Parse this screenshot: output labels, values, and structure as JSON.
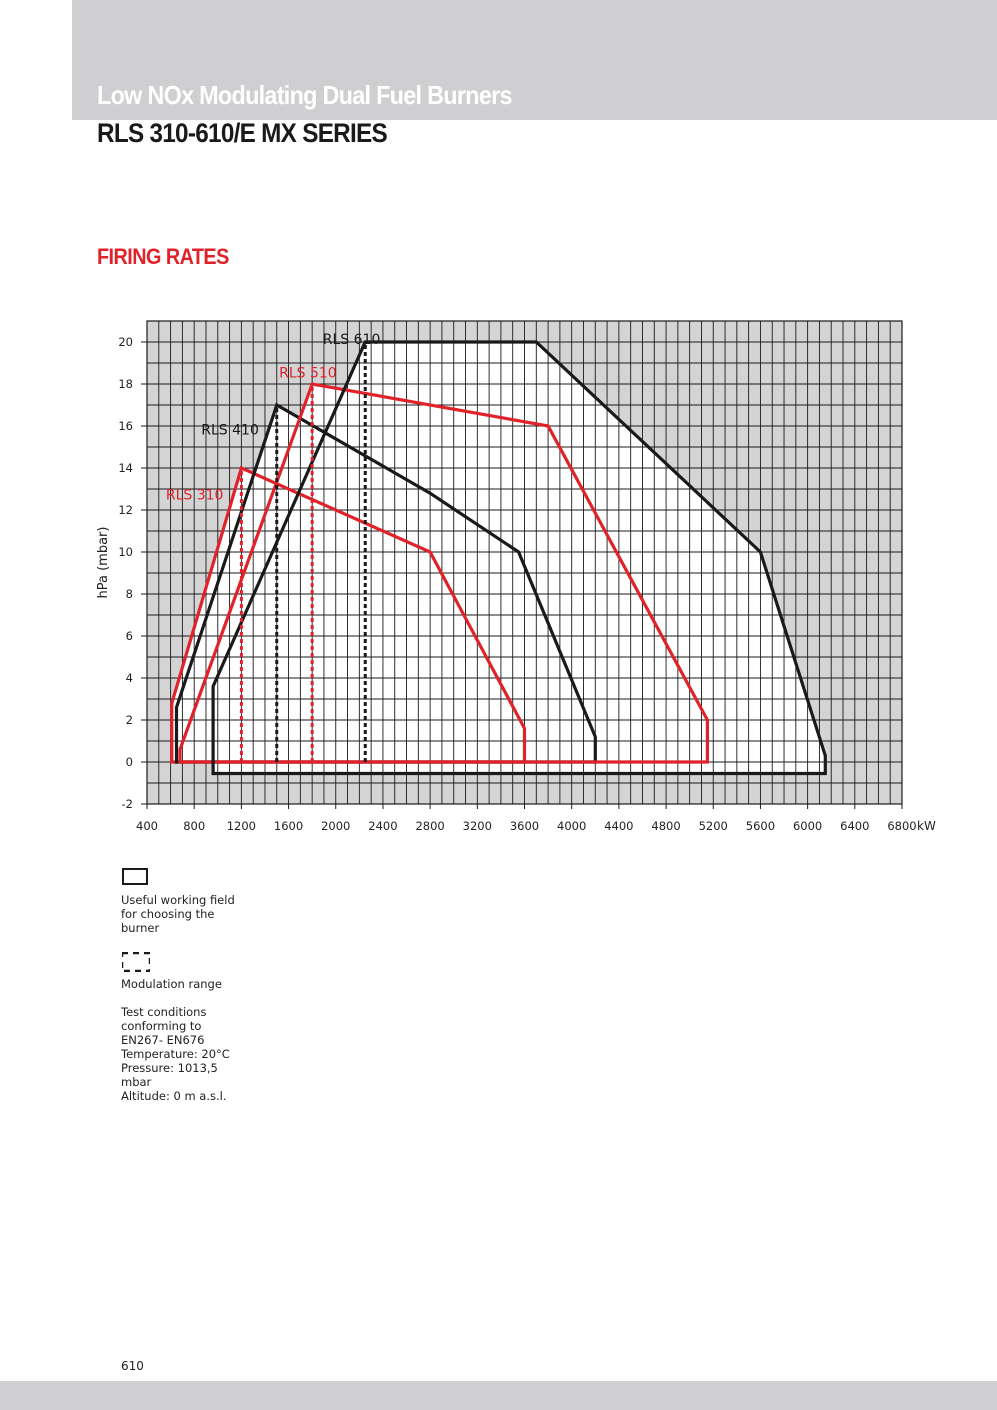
{
  "header": {
    "series_label": "Low NOx Modulating Dual Fuel Burners",
    "title": "RLS 310-610/E MX SERIES"
  },
  "section_title": "FIRING RATES",
  "chart_data": {
    "type": "line",
    "title": "",
    "xlabel": "",
    "x_unit": "kW",
    "ylabel": "hPa (mbar)",
    "xlim": [
      400,
      6800
    ],
    "ylim": [
      -2,
      21
    ],
    "x_ticks": [
      400,
      800,
      1200,
      1600,
      2000,
      2400,
      2800,
      3200,
      3600,
      4000,
      4400,
      4800,
      5200,
      5600,
      6000,
      6400,
      6800
    ],
    "y_ticks": [
      -2,
      0,
      2,
      4,
      6,
      8,
      10,
      12,
      14,
      16,
      18,
      20
    ],
    "grid": true,
    "series": [
      {
        "name": "RLS 310",
        "color": "#e0222a",
        "working_field": [
          [
            610,
            0
          ],
          [
            610,
            2.8
          ],
          [
            1200,
            14
          ],
          [
            2800,
            10
          ],
          [
            3600,
            1.6
          ],
          [
            3600,
            0
          ]
        ],
        "modulation_min_kW": 1200,
        "label_position": [
          560,
          12.5
        ]
      },
      {
        "name": "RLS 410",
        "color": "#1a1a1a",
        "working_field": [
          [
            650,
            0
          ],
          [
            650,
            2.6
          ],
          [
            1500,
            17
          ],
          [
            2800,
            12.8
          ],
          [
            3550,
            10
          ],
          [
            4200,
            1.2
          ],
          [
            4200,
            0
          ]
        ],
        "modulation_min_kW": 1500,
        "label_position": [
          860,
          15.6
        ]
      },
      {
        "name": "RLS 510",
        "color": "#e0222a",
        "working_field": [
          [
            680,
            0
          ],
          [
            680,
            0.6
          ],
          [
            1800,
            18
          ],
          [
            3800,
            16
          ],
          [
            5150,
            2
          ],
          [
            5150,
            0
          ]
        ],
        "modulation_min_kW": 1800,
        "label_position": [
          1520,
          18.3
        ]
      },
      {
        "name": "RLS 610",
        "color": "#1a1a1a",
        "working_field": [
          [
            960,
            -0.55
          ],
          [
            960,
            3.6
          ],
          [
            2250,
            20
          ],
          [
            3700,
            20
          ],
          [
            5600,
            10
          ],
          [
            6150,
            0.3
          ],
          [
            6150,
            -0.55
          ]
        ],
        "modulation_min_kW": 2250,
        "label_position": [
          1890,
          19.9
        ]
      }
    ]
  },
  "legend": {
    "working_field": "Useful working field for choosing the burner",
    "modulation": "Modulation range",
    "test_conditions": "Test conditions\nconforming to\nEN267- EN676\nTemperature: 20°C\nPressure: 1013,5\nmbar\nAltitude: 0 m a.s.l."
  },
  "page_number": "610"
}
